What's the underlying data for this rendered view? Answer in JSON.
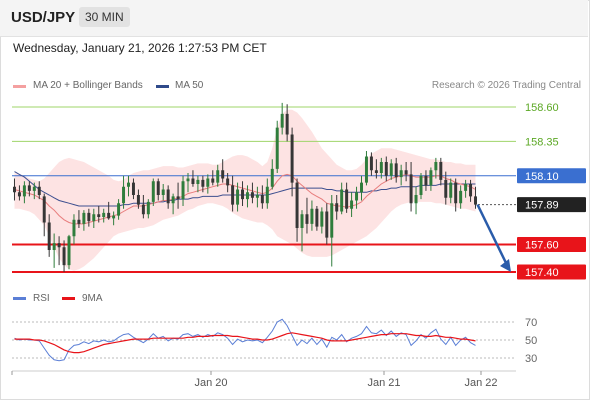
{
  "header": {
    "symbol": "USD/JPY",
    "interval": "30 MIN",
    "datetime": "Wednesday, January 21, 2026 1:27:53 PM CET"
  },
  "legend": {
    "ma20_label": "MA 20 + Bollinger Bands",
    "ma50_label": "MA 50",
    "copyright": "Research © 2026 Trading Central",
    "rsi_label": "RSI",
    "rsi_ma_label": "9MA"
  },
  "colors": {
    "up": "#2f7d3c",
    "down": "#363636",
    "bollinger_fill": "#fde3e3",
    "ma20": "#e87d7d",
    "ma50": "#3d4f8f",
    "resistance": "#9fd46a",
    "support": "#e8141a",
    "pivot": "#3a6fd0",
    "current": "#222222",
    "arrow": "#2a5caa",
    "rsi": "#5b7fd6",
    "rsi_ma": "#e8141a"
  },
  "chart_data": [
    {
      "type": "candlestick",
      "name": "price",
      "ylim": [
        157.3,
        158.75
      ],
      "time_labels": [
        "Jan 20",
        "Jan 21",
        "Jan 22"
      ],
      "candles": [
        [
          158.02,
          158.08,
          157.92,
          157.98
        ],
        [
          157.98,
          158.03,
          157.92,
          157.95
        ],
        [
          157.95,
          158.06,
          157.9,
          158.03
        ],
        [
          158.03,
          158.06,
          157.95,
          157.99
        ],
        [
          157.99,
          158.05,
          157.93,
          158.02
        ],
        [
          158.02,
          158.06,
          157.93,
          157.96
        ],
        [
          157.95,
          157.97,
          157.66,
          157.76
        ],
        [
          157.76,
          157.82,
          157.51,
          157.56
        ],
        [
          157.56,
          157.68,
          157.43,
          157.61
        ],
        [
          157.61,
          157.66,
          157.45,
          157.58
        ],
        [
          157.58,
          157.63,
          157.4,
          157.45
        ],
        [
          157.45,
          157.67,
          157.42,
          157.66
        ],
        [
          157.66,
          157.82,
          157.6,
          157.78
        ],
        [
          157.78,
          157.85,
          157.72,
          157.75
        ],
        [
          157.75,
          157.85,
          157.7,
          157.83
        ],
        [
          157.83,
          157.86,
          157.73,
          157.77
        ],
        [
          157.77,
          157.86,
          157.72,
          157.82
        ],
        [
          157.82,
          157.88,
          157.76,
          157.8
        ],
        [
          157.8,
          157.86,
          157.76,
          157.83
        ],
        [
          157.83,
          157.91,
          157.78,
          157.79
        ],
        [
          157.79,
          157.84,
          157.74,
          157.81
        ],
        [
          157.81,
          157.93,
          157.78,
          157.9
        ],
        [
          157.9,
          158.1,
          157.86,
          158.02
        ],
        [
          158.02,
          158.1,
          157.95,
          158.05
        ],
        [
          158.05,
          158.08,
          157.93,
          157.96
        ],
        [
          157.96,
          158.0,
          157.86,
          157.89
        ],
        [
          157.89,
          157.96,
          157.79,
          157.82
        ],
        [
          157.82,
          157.93,
          157.79,
          157.91
        ],
        [
          157.91,
          158.08,
          157.88,
          158.06
        ],
        [
          158.06,
          158.08,
          157.92,
          157.96
        ],
        [
          157.96,
          158.04,
          157.92,
          158.0
        ],
        [
          158.0,
          158.03,
          157.86,
          157.9
        ],
        [
          157.9,
          157.97,
          157.82,
          157.95
        ],
        [
          157.95,
          158.05,
          157.86,
          157.93
        ],
        [
          157.93,
          158.1,
          157.88,
          158.06
        ],
        [
          158.06,
          158.12,
          157.98,
          158.08
        ],
        [
          158.08,
          158.14,
          158.02,
          158.04
        ],
        [
          158.04,
          158.1,
          157.98,
          158.07
        ],
        [
          158.07,
          158.1,
          157.98,
          158.02
        ],
        [
          158.02,
          158.11,
          157.97,
          158.08
        ],
        [
          158.08,
          158.14,
          158.03,
          158.05
        ],
        [
          158.05,
          158.18,
          158.02,
          158.14
        ],
        [
          158.14,
          158.22,
          158.05,
          158.08
        ],
        [
          158.08,
          158.12,
          157.98,
          158.03
        ],
        [
          158.03,
          158.1,
          157.84,
          157.89
        ],
        [
          157.89,
          158.05,
          157.84,
          158.0
        ],
        [
          158.0,
          158.06,
          157.88,
          157.93
        ],
        [
          157.93,
          158.03,
          157.87,
          157.98
        ],
        [
          157.98,
          158.05,
          157.9,
          157.94
        ],
        [
          157.94,
          158.02,
          157.87,
          157.96
        ],
        [
          157.96,
          158.03,
          157.86,
          157.9
        ],
        [
          157.9,
          158.08,
          157.86,
          158.02
        ],
        [
          158.02,
          158.22,
          158.0,
          158.15
        ],
        [
          158.15,
          158.5,
          158.12,
          158.45
        ],
        [
          158.45,
          158.63,
          158.4,
          158.55
        ],
        [
          158.55,
          158.62,
          158.35,
          158.4
        ],
        [
          158.4,
          158.45,
          157.95,
          158.05
        ],
        [
          158.05,
          158.08,
          157.62,
          157.72
        ],
        [
          157.72,
          157.85,
          157.55,
          157.82
        ],
        [
          157.82,
          157.94,
          157.68,
          157.75
        ],
        [
          157.75,
          157.92,
          157.7,
          157.86
        ],
        [
          157.86,
          157.88,
          157.7,
          157.73
        ],
        [
          157.73,
          157.87,
          157.68,
          157.84
        ],
        [
          157.84,
          157.9,
          157.6,
          157.65
        ],
        [
          157.65,
          157.96,
          157.44,
          157.9
        ],
        [
          157.9,
          157.96,
          157.78,
          157.84
        ],
        [
          157.84,
          158.05,
          157.82,
          158.0
        ],
        [
          158.0,
          158.05,
          157.83,
          157.86
        ],
        [
          157.86,
          157.98,
          157.8,
          157.92
        ],
        [
          157.92,
          158.02,
          157.86,
          157.98
        ],
        [
          157.98,
          158.1,
          157.92,
          158.05
        ],
        [
          158.05,
          158.28,
          158.03,
          158.24
        ],
        [
          158.24,
          158.27,
          158.1,
          158.14
        ],
        [
          158.14,
          158.22,
          158.08,
          158.12
        ],
        [
          158.12,
          158.23,
          158.08,
          158.2
        ],
        [
          158.2,
          158.24,
          158.06,
          158.1
        ],
        [
          158.1,
          158.22,
          158.07,
          158.19
        ],
        [
          158.19,
          158.23,
          158.05,
          158.09
        ],
        [
          158.09,
          158.18,
          158.03,
          158.14
        ],
        [
          158.14,
          158.2,
          158.06,
          158.11
        ],
        [
          158.11,
          158.2,
          157.84,
          157.9
        ],
        [
          157.9,
          158.02,
          157.82,
          157.96
        ],
        [
          157.96,
          158.12,
          157.93,
          158.1
        ],
        [
          158.1,
          158.14,
          157.99,
          158.03
        ],
        [
          158.03,
          158.16,
          157.99,
          158.14
        ],
        [
          158.14,
          158.23,
          158.08,
          158.2
        ],
        [
          158.2,
          158.23,
          158.03,
          158.07
        ],
        [
          158.07,
          158.13,
          157.89,
          157.94
        ],
        [
          157.94,
          158.08,
          157.9,
          158.05
        ],
        [
          158.05,
          158.08,
          157.84,
          157.9
        ],
        [
          157.9,
          158.03,
          157.86,
          157.99
        ],
        [
          157.99,
          158.07,
          157.94,
          158.04
        ],
        [
          158.04,
          158.07,
          157.91,
          157.95
        ],
        [
          157.95,
          158.02,
          157.86,
          157.89
        ]
      ],
      "ma20": [
        158.0,
        157.99,
        157.98,
        157.97,
        157.96,
        157.94,
        157.92,
        157.88,
        157.85,
        157.81,
        157.78,
        157.76,
        157.75,
        157.75,
        157.75,
        157.76,
        157.77,
        157.78,
        157.79,
        157.8,
        157.81,
        157.82,
        157.84,
        157.86,
        157.88,
        157.88,
        157.88,
        157.89,
        157.9,
        157.91,
        157.92,
        157.92,
        157.93,
        157.94,
        157.95,
        157.97,
        157.98,
        157.99,
        158.0,
        158.01,
        158.02,
        158.03,
        158.04,
        158.04,
        158.03,
        158.02,
        158.01,
        158.0,
        157.99,
        157.98,
        157.97,
        157.98,
        158.01,
        158.06,
        158.1,
        158.11,
        158.1,
        158.06,
        158.03,
        158.0,
        157.97,
        157.95,
        157.93,
        157.9,
        157.89,
        157.88,
        157.88,
        157.87,
        157.88,
        157.89,
        157.91,
        157.95,
        157.98,
        158.01,
        158.04,
        158.06,
        158.08,
        158.09,
        158.1,
        158.11,
        158.1,
        158.09,
        158.09,
        158.09,
        158.09,
        158.1,
        158.1,
        158.08,
        158.07,
        158.05,
        158.04,
        158.03,
        158.02,
        158.0
      ],
      "bollinger_upper": [
        158.12,
        158.11,
        158.1,
        158.08,
        158.07,
        158.06,
        158.08,
        158.12,
        158.16,
        158.2,
        158.22,
        158.23,
        158.22,
        158.21,
        158.2,
        158.18,
        158.16,
        158.14,
        158.12,
        158.1,
        158.07,
        158.06,
        158.07,
        158.1,
        158.12,
        158.13,
        158.14,
        158.14,
        158.15,
        158.16,
        158.17,
        158.17,
        158.17,
        158.16,
        158.16,
        158.17,
        158.18,
        158.19,
        158.19,
        158.19,
        158.18,
        158.18,
        158.2,
        158.22,
        158.24,
        158.25,
        158.25,
        158.24,
        158.22,
        158.2,
        158.17,
        158.2,
        158.3,
        158.45,
        158.55,
        158.58,
        158.58,
        158.56,
        158.52,
        158.47,
        158.42,
        158.36,
        158.3,
        158.26,
        158.22,
        158.18,
        158.16,
        158.14,
        158.14,
        158.15,
        158.18,
        158.22,
        158.26,
        158.28,
        158.3,
        158.3,
        158.3,
        158.29,
        158.28,
        158.27,
        158.26,
        158.25,
        158.24,
        158.23,
        158.22,
        158.22,
        158.21,
        158.2,
        158.2,
        158.19,
        158.19,
        158.18,
        158.18,
        158.18
      ],
      "bollinger_lower": [
        157.86,
        157.86,
        157.85,
        157.84,
        157.82,
        157.78,
        157.74,
        157.66,
        157.58,
        157.5,
        157.45,
        157.42,
        157.41,
        157.42,
        157.44,
        157.47,
        157.5,
        157.54,
        157.58,
        157.62,
        157.66,
        157.68,
        157.69,
        157.7,
        157.71,
        157.72,
        157.72,
        157.73,
        157.74,
        157.76,
        157.78,
        157.79,
        157.8,
        157.81,
        157.83,
        157.85,
        157.86,
        157.88,
        157.89,
        157.9,
        157.9,
        157.89,
        157.88,
        157.86,
        157.83,
        157.81,
        157.79,
        157.78,
        157.77,
        157.76,
        157.76,
        157.74,
        157.71,
        157.66,
        157.64,
        157.62,
        157.6,
        157.57,
        157.54,
        157.52,
        157.51,
        157.51,
        157.51,
        157.51,
        157.52,
        157.54,
        157.56,
        157.58,
        157.6,
        157.62,
        157.64,
        157.66,
        157.69,
        157.72,
        157.76,
        157.8,
        157.84,
        157.87,
        157.89,
        157.9,
        157.91,
        157.91,
        157.91,
        157.91,
        157.91,
        157.9,
        157.9,
        157.89,
        157.88,
        157.87,
        157.86,
        157.86,
        157.85,
        157.84
      ],
      "ma50": [
        158.13,
        158.11,
        158.09,
        158.06,
        158.03,
        158.0,
        157.98,
        157.96,
        157.94,
        157.92,
        157.91,
        157.9,
        157.89,
        157.88,
        157.88,
        157.88,
        157.88,
        157.88,
        157.88,
        157.88,
        157.88,
        157.88,
        157.89,
        157.89,
        157.9,
        157.9,
        157.9,
        157.9,
        157.9,
        157.91,
        157.91,
        157.92,
        157.92,
        157.93,
        157.93,
        157.93,
        157.94,
        157.94,
        157.95,
        157.95,
        157.95,
        157.95,
        157.96,
        157.96,
        157.96,
        157.96,
        157.96,
        157.96,
        157.96,
        157.96,
        157.96,
        157.96,
        157.97,
        157.98,
        157.99,
        158.0,
        158.01,
        158.01,
        158.01,
        158.01,
        158.01,
        158.01,
        158.01,
        158.0,
        158.0,
        157.99,
        157.99,
        157.98,
        157.98,
        157.98,
        157.98,
        157.98,
        157.99,
        157.99,
        158.0,
        158.0,
        158.01,
        158.01,
        158.02,
        158.02,
        158.02,
        158.02,
        158.03,
        158.03,
        158.03,
        158.03,
        158.04,
        158.04,
        158.04,
        158.04,
        158.04,
        158.04,
        158.04,
        158.04
      ],
      "levels": [
        {
          "label": "158.60",
          "value": 158.6,
          "kind": "resistance"
        },
        {
          "label": "158.35",
          "value": 158.35,
          "kind": "resistance"
        },
        {
          "label": "158.10",
          "value": 158.1,
          "kind": "pivot"
        },
        {
          "label": "157.89",
          "value": 157.89,
          "kind": "current"
        },
        {
          "label": "157.60",
          "value": 157.6,
          "kind": "support"
        },
        {
          "label": "157.40",
          "value": 157.4,
          "kind": "support"
        }
      ],
      "forecast_target": 157.4
    },
    {
      "type": "line",
      "name": "rsi",
      "ylim": [
        20,
        80
      ],
      "ticks": [
        70,
        50,
        30
      ],
      "rsi": [
        52,
        50,
        51,
        50,
        50,
        49,
        41,
        33,
        28,
        27,
        28,
        39,
        44,
        45,
        48,
        46,
        49,
        48,
        50,
        48,
        49,
        53,
        56,
        57,
        53,
        50,
        47,
        51,
        57,
        52,
        54,
        49,
        52,
        51,
        56,
        57,
        54,
        56,
        53,
        56,
        54,
        58,
        56,
        52,
        45,
        51,
        48,
        50,
        49,
        50,
        47,
        53,
        60,
        70,
        73,
        66,
        55,
        44,
        50,
        46,
        52,
        45,
        51,
        42,
        53,
        50,
        56,
        48,
        52,
        54,
        57,
        65,
        58,
        57,
        61,
        55,
        60,
        54,
        58,
        56,
        44,
        49,
        56,
        52,
        58,
        62,
        51,
        45,
        53,
        44,
        50,
        53,
        47,
        44
      ],
      "rsi_ma": [
        51,
        51,
        51,
        51,
        50,
        50,
        49,
        47,
        45,
        42,
        39,
        37,
        36,
        36,
        37,
        39,
        41,
        43,
        45,
        46,
        47,
        48,
        49,
        50,
        51,
        51,
        51,
        51,
        52,
        52,
        52,
        52,
        52,
        52,
        52,
        53,
        53,
        54,
        54,
        54,
        55,
        55,
        55,
        55,
        54,
        54,
        53,
        52,
        51,
        51,
        50,
        50,
        51,
        53,
        55,
        57,
        58,
        57,
        56,
        55,
        54,
        53,
        52,
        50,
        49,
        49,
        49,
        49,
        50,
        51,
        52,
        53,
        54,
        55,
        56,
        56,
        57,
        57,
        57,
        57,
        56,
        55,
        55,
        54,
        54,
        55,
        54,
        53,
        53,
        52,
        51,
        51,
        50,
        49
      ]
    }
  ]
}
